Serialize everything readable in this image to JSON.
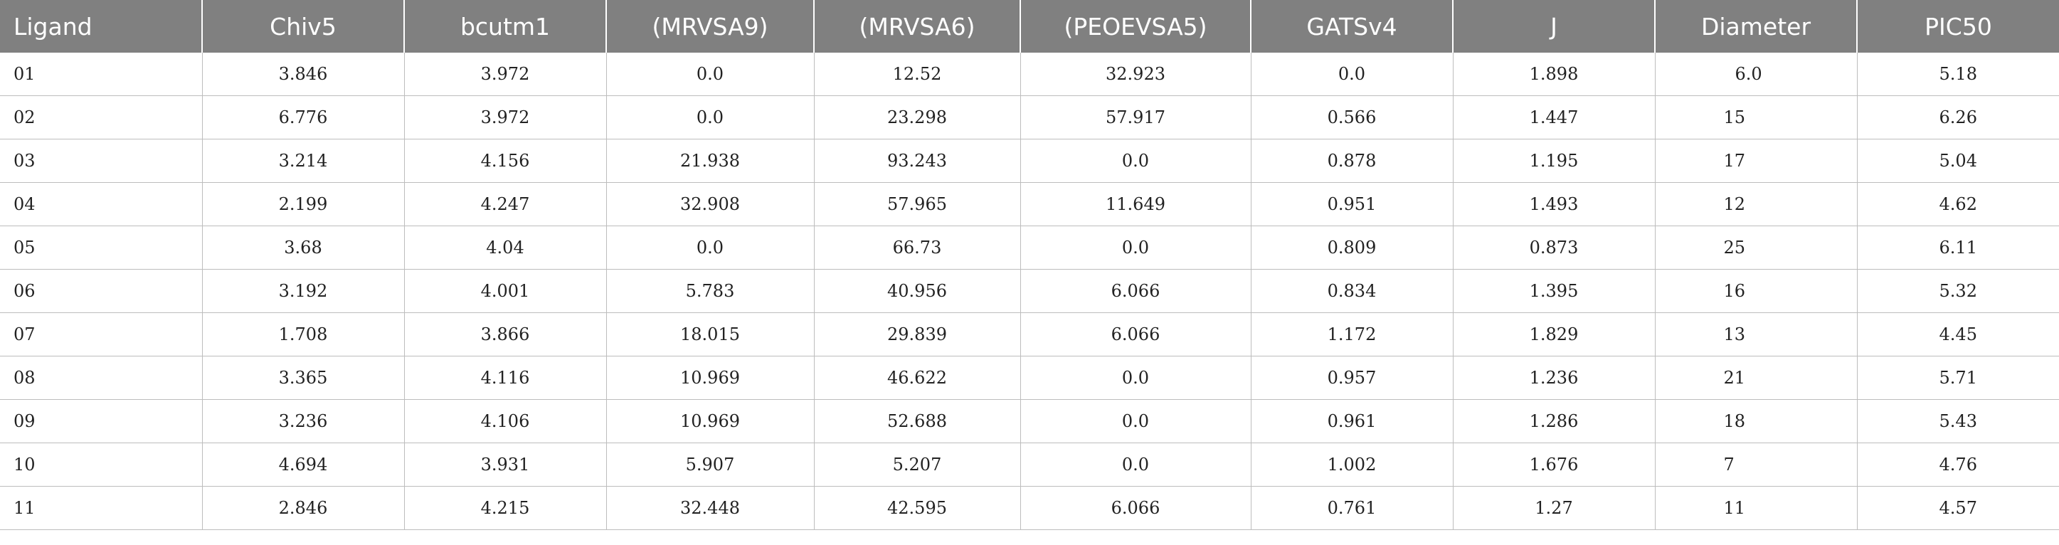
{
  "table": {
    "headers": [
      "Ligand",
      "Chiv5",
      "bcutm1",
      "(MRVSA9)",
      "(MRVSA6)",
      "(PEOEVSA5)",
      "GATSv4",
      "J",
      "Diameter",
      "PIC50"
    ],
    "rows": [
      [
        "01",
        "3.846",
        "3.972",
        "0.0",
        "12.52",
        "32.923",
        "0.0",
        "1.898",
        "6.0",
        "5.18"
      ],
      [
        "02",
        "6.776",
        "3.972",
        "0.0",
        "23.298",
        "57.917",
        "0.566",
        "1.447",
        "15",
        "6.26"
      ],
      [
        "03",
        "3.214",
        "4.156",
        "21.938",
        "93.243",
        "0.0",
        "0.878",
        "1.195",
        "17",
        "5.04"
      ],
      [
        "04",
        "2.199",
        "4.247",
        "32.908",
        "57.965",
        "11.649",
        "0.951",
        "1.493",
        "12",
        "4.62"
      ],
      [
        "05",
        "3.68",
        "4.04",
        "0.0",
        "66.73",
        "0.0",
        "0.809",
        "0.873",
        "25",
        "6.11"
      ],
      [
        "06",
        "3.192",
        "4.001",
        "5.783",
        "40.956",
        "6.066",
        "0.834",
        "1.395",
        "16",
        "5.32"
      ],
      [
        "07",
        "1.708",
        "3.866",
        "18.015",
        "29.839",
        "6.066",
        "1.172",
        "1.829",
        "13",
        "4.45"
      ],
      [
        "08",
        "3.365",
        "4.116",
        "10.969",
        "46.622",
        "0.0",
        "0.957",
        "1.236",
        "21",
        "5.71"
      ],
      [
        "09",
        "3.236",
        "4.106",
        "10.969",
        "52.688",
        "0.0",
        "0.961",
        "1.286",
        "18",
        "5.43"
      ],
      [
        "10",
        "4.694",
        "3.931",
        "5.907",
        "5.207",
        "0.0",
        "1.002",
        "1.676",
        "7",
        "4.76"
      ],
      [
        "11",
        "2.846",
        "4.215",
        "32.448",
        "42.595",
        "6.066",
        "0.761",
        "1.27",
        "11",
        "4.57"
      ]
    ]
  }
}
